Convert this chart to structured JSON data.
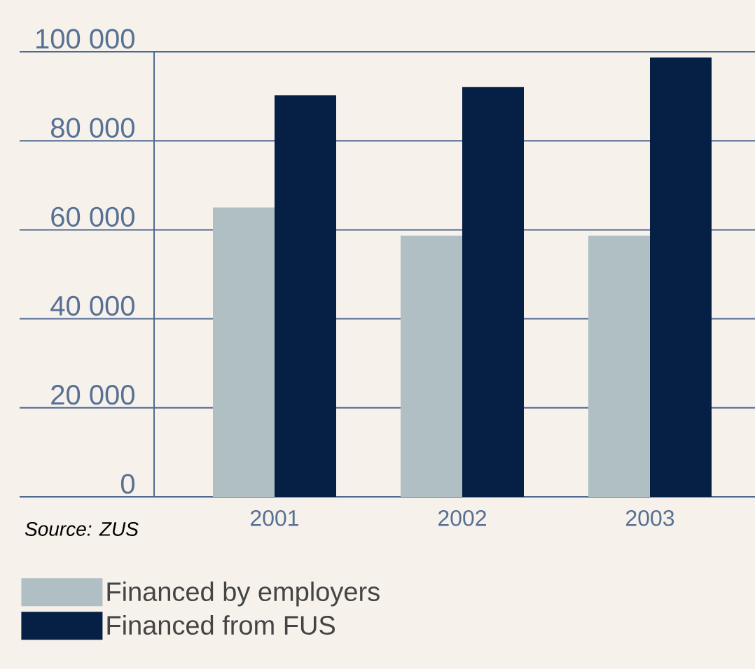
{
  "chart_data": {
    "type": "bar",
    "categories": [
      "2001",
      "2002",
      "2003"
    ],
    "series": [
      {
        "name": "Financed by employers",
        "color": "#b0bfc4",
        "values": [
          65000,
          58700,
          58700
        ]
      },
      {
        "name": "Financed from FUS",
        "color": "#061f45",
        "values": [
          90200,
          92100,
          98700
        ]
      }
    ],
    "ylim": [
      0,
      100000
    ],
    "yticks": [
      {
        "value": 0,
        "label": "0"
      },
      {
        "value": 20000,
        "label": "20 000"
      },
      {
        "value": 40000,
        "label": "40 000"
      },
      {
        "value": 60000,
        "label": "60 000"
      },
      {
        "value": 80000,
        "label": "80 000"
      },
      {
        "value": 100000,
        "label": "100 000"
      }
    ],
    "grid": "y",
    "legend": "bottom left",
    "annotations": [
      "Source: ZUS"
    ]
  }
}
